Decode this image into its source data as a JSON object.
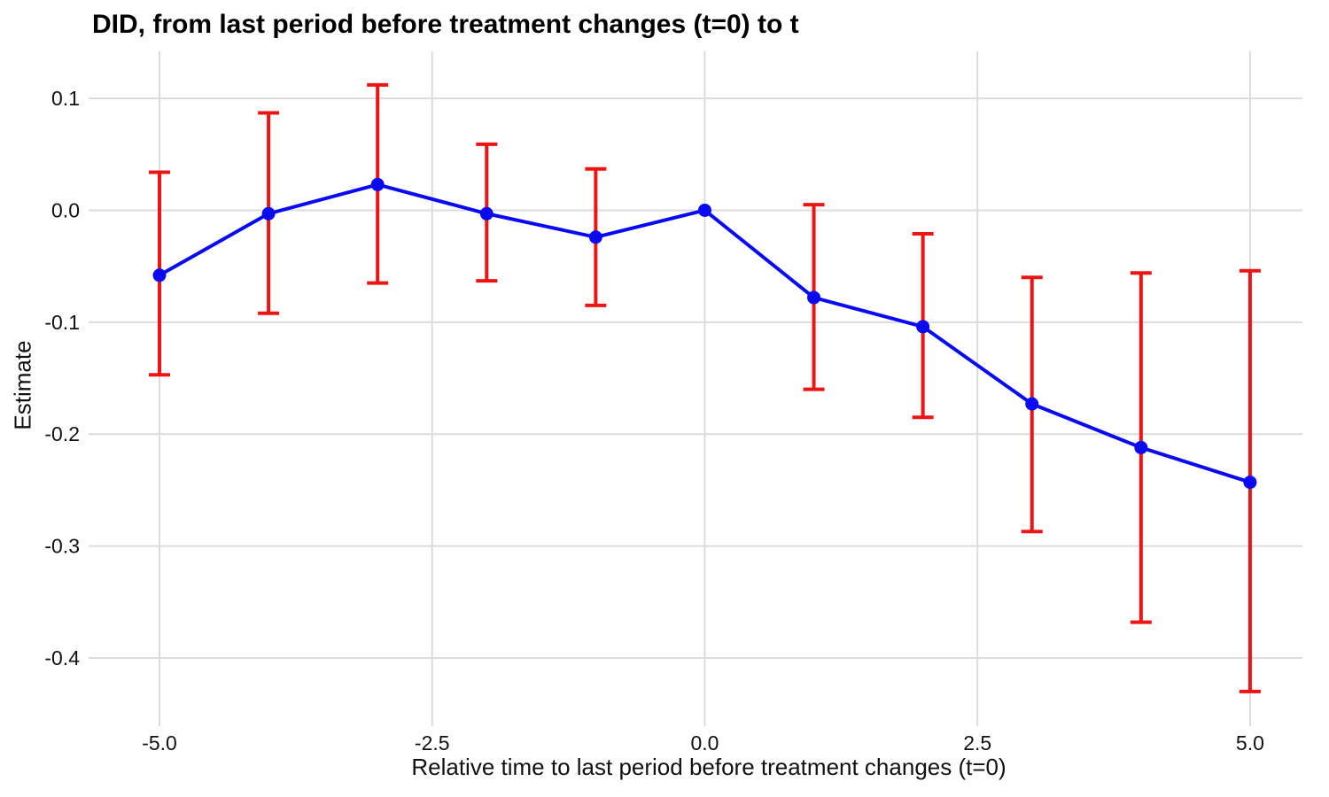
{
  "chart_data": {
    "type": "line",
    "title": "DID, from last period before treatment changes (t=0) to t",
    "xlabel": "Relative time to last period before treatment changes (t=0)",
    "ylabel": "Estimate",
    "x": [
      -5,
      -4,
      -3,
      -2,
      -1,
      0,
      1,
      2,
      3,
      4,
      5
    ],
    "series": [
      {
        "name": "estimate",
        "values": [
          -0.058,
          -0.003,
          0.023,
          -0.003,
          -0.024,
          0.0,
          -0.078,
          -0.104,
          -0.173,
          -0.212,
          -0.243
        ]
      },
      {
        "name": "ci_lower",
        "values": [
          -0.147,
          -0.092,
          -0.065,
          -0.063,
          -0.085,
          null,
          -0.16,
          -0.185,
          -0.287,
          -0.368,
          -0.43
        ]
      },
      {
        "name": "ci_upper",
        "values": [
          0.034,
          0.087,
          0.112,
          0.059,
          0.037,
          null,
          0.005,
          -0.021,
          -0.06,
          -0.056,
          -0.054
        ]
      }
    ],
    "x_ticks": [
      -5.0,
      -2.5,
      0.0,
      2.5,
      5.0
    ],
    "x_tick_labels": [
      "-5.0",
      "-2.5",
      "0.0",
      "2.5",
      "5.0"
    ],
    "y_ticks": [
      0.1,
      0.0,
      -0.1,
      -0.2,
      -0.3,
      -0.4
    ],
    "y_tick_labels": [
      "0.1",
      "0.0",
      "-0.1",
      "-0.2",
      "-0.3",
      "-0.4"
    ],
    "xlim": [
      -5.65,
      5.48
    ],
    "ylim": [
      -0.453,
      0.142
    ],
    "grid": "major",
    "legend": "none",
    "colors": {
      "line": "#0A0AF0",
      "point": "#0A0AF0",
      "errorbar": "#EE1414",
      "gridline": "#DCDCDC",
      "tick": "#DCDCDC",
      "text": "#111111",
      "title": "#000000",
      "background": "#FFFFFF"
    },
    "style": {
      "line_width": 4,
      "errorbar_width": 4,
      "errorbar_cap_halfwidth": 12,
      "point_radius": 7.5,
      "gridline_width": 2
    }
  }
}
